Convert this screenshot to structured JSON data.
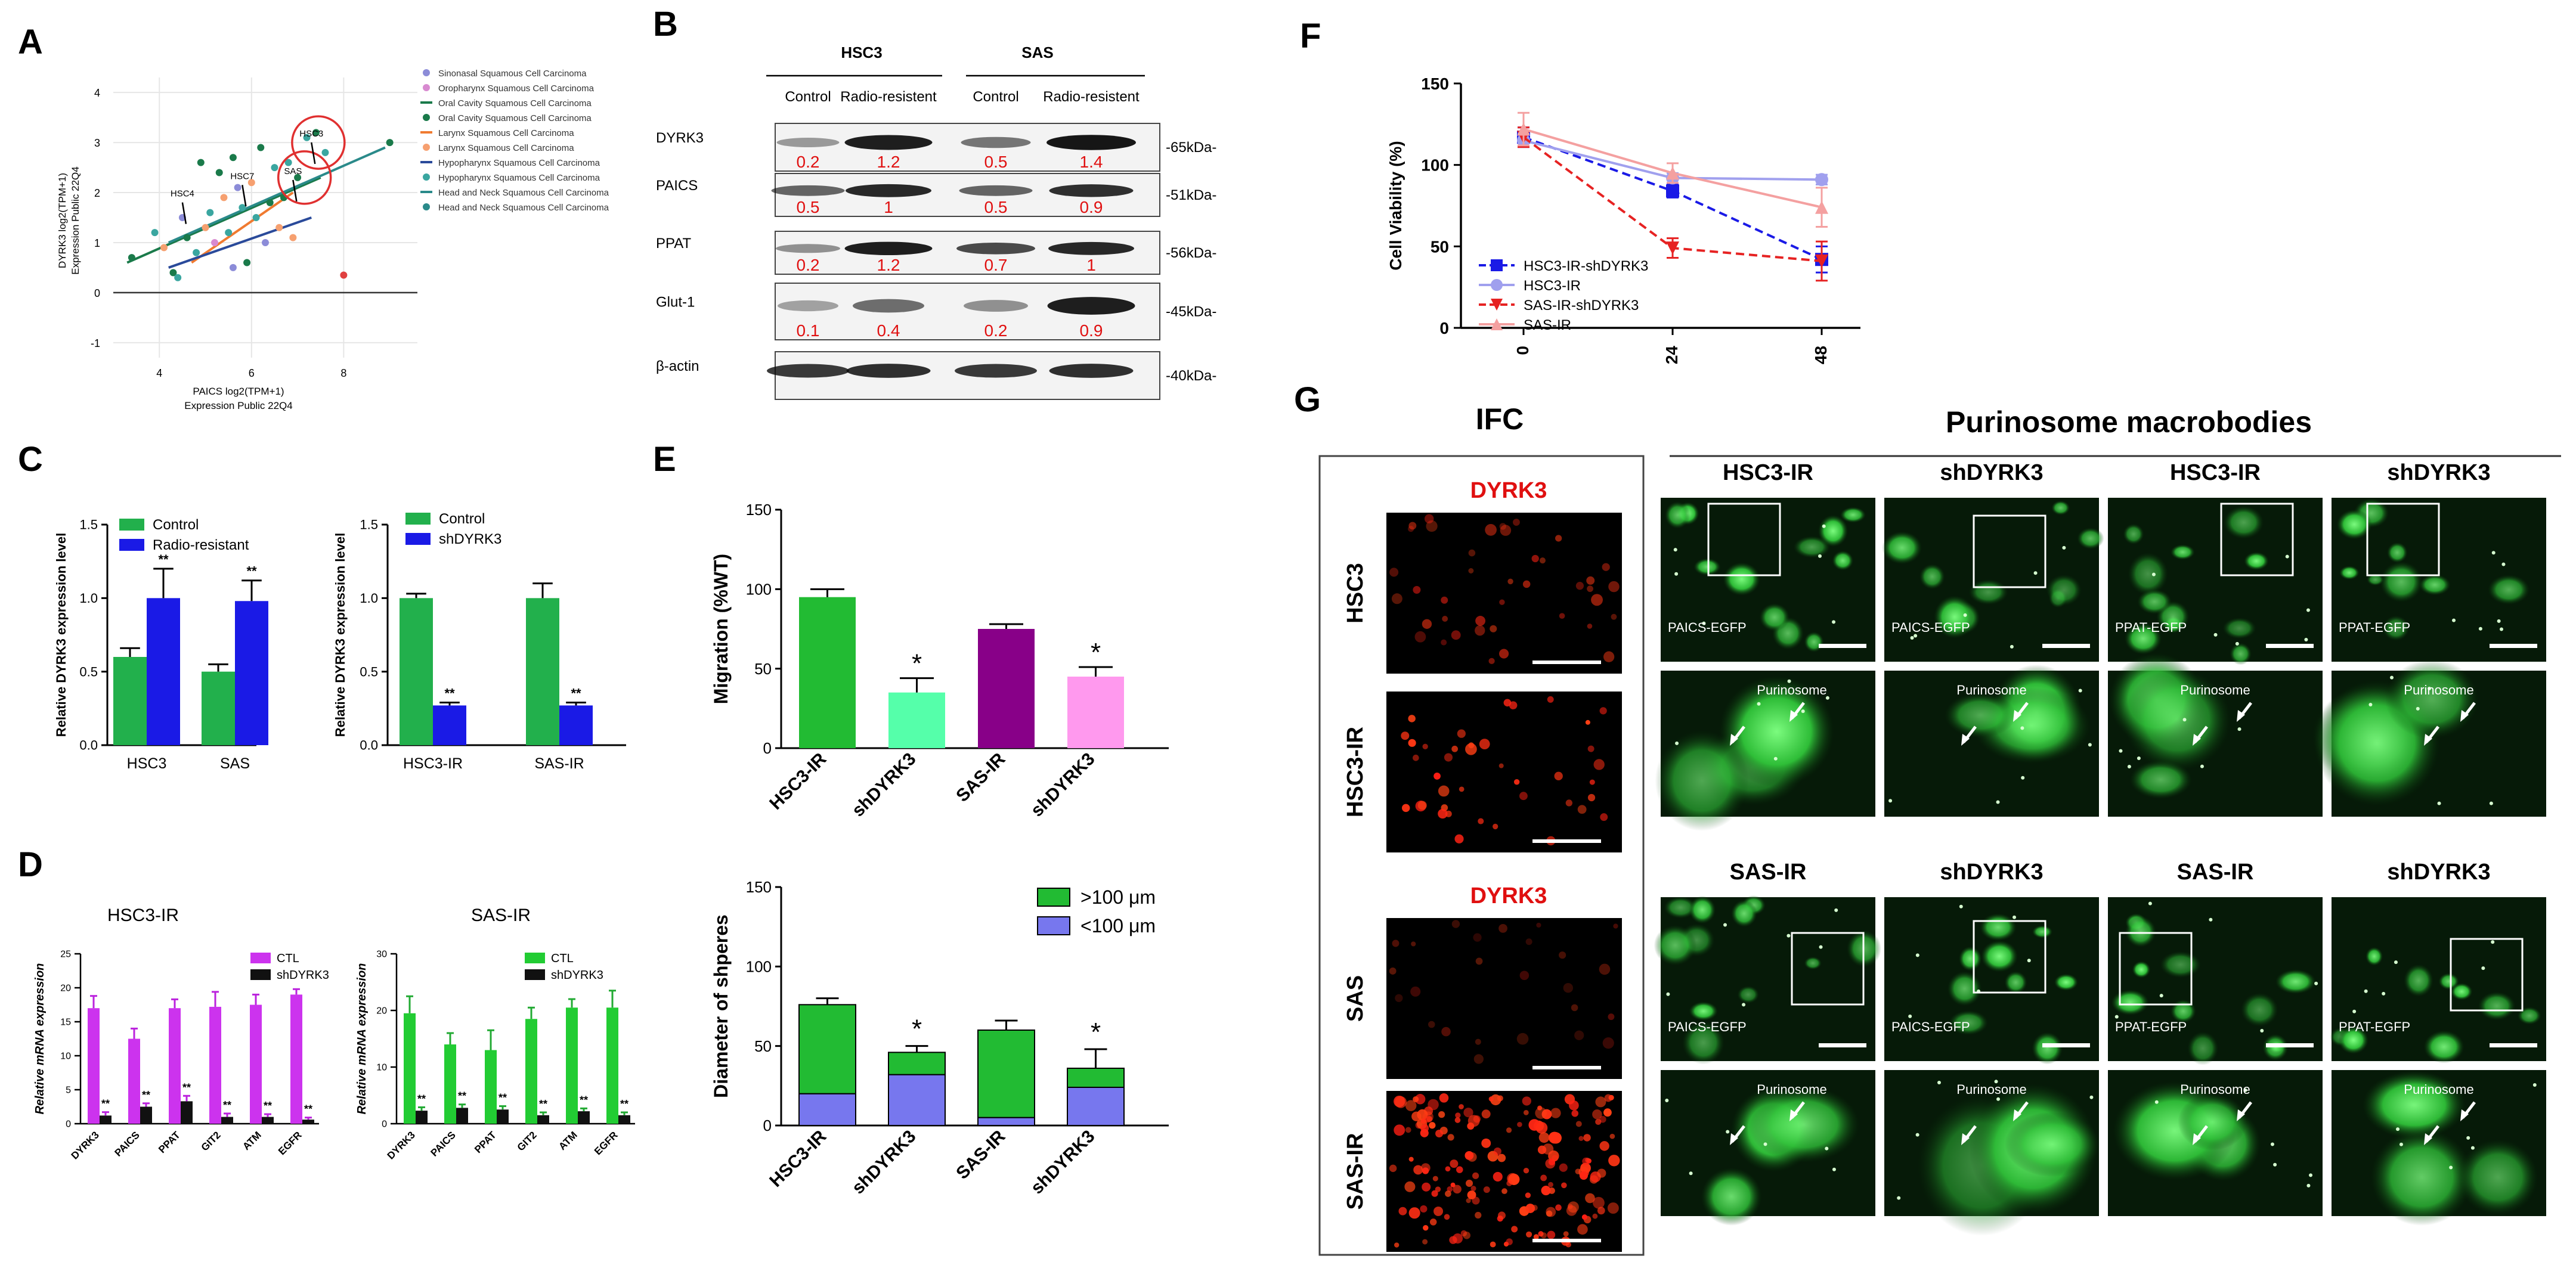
{
  "panel_letters": {
    "A": "A",
    "B": "B",
    "C": "C",
    "D": "D",
    "E": "E",
    "F": "F",
    "G": "G"
  },
  "chart_data": [
    {
      "panel": "A",
      "type": "scatter",
      "xlabel_lines": [
        "PAICS log2(TPM+1)",
        "Expression Public 22Q4"
      ],
      "ylabel_lines": [
        "DYRK3 log2(TPM+1)",
        "Expression Public 22Q4"
      ],
      "xticks": [
        "4",
        "6",
        "8"
      ],
      "yticks": [
        "4",
        "3",
        "2",
        "1",
        "0",
        "-1"
      ],
      "xlim": [
        3,
        9.6
      ],
      "ylim": [
        -1.3,
        4.3
      ],
      "legend": [
        "Sinonasal Squamous Cell Carcinoma",
        "Oropharynx Squamous Cell Carcinoma",
        "Oral Cavity Squamous Cell Carcinoma",
        "Oral Cavity Squamous Cell Carcinoma",
        "Larynx Squamous Cell Carcinoma",
        "Larynx Squamous Cell Carcinoma",
        "Hypopharynx Squamous Cell Carcinoma",
        "Hypopharynx Squamous Cell Carcinoma",
        "Head and Neck Squamous Cell Carcinoma",
        "Head and Neck Squamous Cell Carcinoma"
      ],
      "legend_colors": [
        "#8c8cd8",
        "#d88ad0",
        "#1a7a4a",
        "#1a7a4a",
        "#f07a30",
        "#f6a070",
        "#2a4a9a",
        "#3aa6a0",
        "#2a8a8a",
        "#2a8a8a"
      ],
      "legend_kinds": [
        "dot",
        "dot",
        "line",
        "dot",
        "line",
        "dot",
        "line",
        "dot",
        "line",
        "dot"
      ],
      "labels": [
        {
          "text": "HSC3",
          "x": 7.3,
          "y": 3.05
        },
        {
          "text": "SAS",
          "x": 6.9,
          "y": 2.3
        },
        {
          "text": "HSC4",
          "x": 4.5,
          "y": 1.85
        },
        {
          "text": "HSC7",
          "x": 5.8,
          "y": 2.2
        }
      ],
      "circles": [
        {
          "x": 7.45,
          "y": 3.0
        },
        {
          "x": 7.15,
          "y": 2.3
        }
      ],
      "fit_lines": [
        {
          "color": "#1a7a4a",
          "x": [
            3.3,
            7.5
          ],
          "y": [
            0.6,
            2.3
          ]
        },
        {
          "color": "#2a8a8a",
          "x": [
            4.2,
            8.9
          ],
          "y": [
            1.0,
            2.9
          ]
        },
        {
          "color": "#f07a30",
          "x": [
            4.7,
            6.9
          ],
          "y": [
            0.6,
            2.0
          ]
        },
        {
          "color": "#2a4a9a",
          "x": [
            4.2,
            7.3
          ],
          "y": [
            0.5,
            1.5
          ]
        }
      ],
      "points": {
        "x": [
          3.4,
          3.9,
          4.1,
          4.3,
          4.5,
          4.6,
          4.8,
          4.9,
          5.0,
          5.1,
          5.2,
          5.3,
          5.4,
          5.5,
          5.6,
          5.7,
          5.8,
          5.9,
          6.0,
          6.1,
          6.2,
          6.3,
          6.4,
          6.5,
          6.6,
          6.7,
          6.8,
          7.0,
          7.2,
          7.4,
          7.6,
          8.0,
          9.0,
          4.4,
          5.6,
          6.9
        ],
        "y": [
          0.7,
          1.2,
          0.9,
          0.4,
          1.5,
          1.1,
          0.8,
          2.6,
          1.3,
          1.6,
          1.0,
          2.4,
          1.9,
          1.2,
          2.7,
          2.1,
          1.7,
          0.6,
          2.2,
          1.5,
          2.9,
          1.0,
          1.8,
          2.5,
          1.3,
          1.9,
          2.6,
          2.3,
          3.1,
          3.2,
          2.8,
          0.35,
          3.0,
          0.3,
          0.5,
          1.1
        ],
        "colors": [
          "#1a7a4a",
          "#3aa6a0",
          "#f6a070",
          "#1a7a4a",
          "#8c8cd8",
          "#1a7a4a",
          "#3aa6a0",
          "#1a7a4a",
          "#f6a070",
          "#3aa6a0",
          "#d88ad0",
          "#1a7a4a",
          "#f6a070",
          "#3aa6a0",
          "#1a7a4a",
          "#8c8cd8",
          "#3aa6a0",
          "#1a7a4a",
          "#f6a070",
          "#3aa6a0",
          "#1a7a4a",
          "#8c8cd8",
          "#1a7a4a",
          "#3aa6a0",
          "#f6a070",
          "#1a7a4a",
          "#3aa6a0",
          "#1a7a4a",
          "#3aa6a0",
          "#1a7a4a",
          "#3aa6a0",
          "#e04040",
          "#1a7a4a",
          "#3aa6a0",
          "#8c8cd8",
          "#f6a070"
        ]
      }
    },
    {
      "panel": "C1",
      "type": "bar",
      "categories": [
        "HSC3",
        "SAS"
      ],
      "series": [
        {
          "name": "Control",
          "values": [
            0.6,
            0.5
          ],
          "err": [
            0.06,
            0.05
          ],
          "color": "#22b04c"
        },
        {
          "name": "Radio-resistant",
          "values": [
            1.0,
            0.98
          ],
          "err": [
            0.2,
            0.14
          ],
          "color": "#1a1ae6"
        }
      ],
      "ylabel": "Relative DYRK3 expression level",
      "ylim": [
        0,
        1.5
      ],
      "yticks": [
        "0.0",
        "0.5",
        "1.0",
        "1.5"
      ],
      "sig": [
        "**",
        "**"
      ]
    },
    {
      "panel": "C2",
      "type": "bar",
      "categories": [
        "HSC3-IR",
        "SAS-IR"
      ],
      "series": [
        {
          "name": "Control",
          "values": [
            1.0,
            1.0
          ],
          "err": [
            0.03,
            0.1
          ],
          "color": "#22b04c"
        },
        {
          "name": "shDYRK3",
          "values": [
            0.27,
            0.27
          ],
          "err": [
            0.02,
            0.02
          ],
          "color": "#1a1ae6"
        }
      ],
      "ylabel": "Relative DYRK3 expression level",
      "ylim": [
        0,
        1.5
      ],
      "yticks": [
        "0.0",
        "0.5",
        "1.0",
        "1.5"
      ],
      "sig": [
        "**",
        "**"
      ]
    },
    {
      "panel": "D1",
      "type": "bar",
      "title": "HSC3-IR",
      "categories": [
        "DYRK3",
        "PAICS",
        "PPAT",
        "GIT2",
        "ATM",
        "EGFR"
      ],
      "series": [
        {
          "name": "CTL",
          "values": [
            17,
            12.5,
            17,
            17.2,
            17.5,
            19
          ],
          "err": [
            1.8,
            1.5,
            1.3,
            2.2,
            1.5,
            0.8
          ],
          "color": "#cc33ee"
        },
        {
          "name": "shDYRK3",
          "values": [
            1.2,
            2.5,
            3.3,
            1.0,
            1.0,
            0.6
          ],
          "err": [
            0.5,
            0.5,
            0.8,
            0.5,
            0.4,
            0.3
          ],
          "color": "#111111"
        }
      ],
      "ylabel": "Relative mRNA expression",
      "ylim": [
        0,
        25
      ],
      "yticks": [
        "0",
        "5",
        "10",
        "15",
        "20",
        "25"
      ],
      "sig": [
        "**",
        "**",
        "**",
        "**",
        "**",
        "**"
      ]
    },
    {
      "panel": "D2",
      "type": "bar",
      "title": "SAS-IR",
      "categories": [
        "DYRK3",
        "PAICS",
        "PPAT",
        "GIT2",
        "ATM",
        "EGFR"
      ],
      "series": [
        {
          "name": "CTL",
          "values": [
            19.5,
            14,
            13,
            18.5,
            20.5,
            20.5
          ],
          "err": [
            3,
            2,
            3.5,
            2,
            1.5,
            3
          ],
          "color": "#22cc33"
        },
        {
          "name": "shDYRK3",
          "values": [
            2.3,
            2.8,
            2.5,
            1.5,
            2.2,
            1.5
          ],
          "err": [
            0.6,
            0.6,
            0.6,
            0.5,
            0.5,
            0.5
          ],
          "color": "#111111"
        }
      ],
      "ylabel": "Relative mRNA expression",
      "ylim": [
        0,
        30
      ],
      "yticks": [
        "0",
        "10",
        "20",
        "30"
      ],
      "sig": [
        "**",
        "**",
        "**",
        "**",
        "**",
        "**"
      ]
    },
    {
      "panel": "E1",
      "type": "bar",
      "categories": [
        "HSC3-IR",
        "shDYRK3",
        "SAS-IR",
        "shDYRK3"
      ],
      "values": [
        95,
        35,
        75,
        45
      ],
      "err": [
        5,
        9,
        3,
        6
      ],
      "colors": [
        "#22bb33",
        "#55ffaa",
        "#880088",
        "#ff99ee"
      ],
      "ylabel": "Migration (%WT)",
      "ylim": [
        0,
        150
      ],
      "yticks": [
        "0",
        "50",
        "100",
        "150"
      ],
      "sig": [
        "",
        "*",
        "",
        "*"
      ]
    },
    {
      "panel": "E2",
      "type": "bar",
      "stacked": true,
      "categories": [
        "HSC3-IR",
        "shDYRK3",
        "SAS-IR",
        "shDYRK3"
      ],
      "series": [
        {
          "name": "<100 μm",
          "values": [
            20,
            32,
            5,
            24
          ],
          "err": [
            5,
            5,
            4,
            5
          ],
          "color": "#7777ee"
        },
        {
          "name": ">100 μm",
          "values": [
            56,
            14,
            55,
            12
          ],
          "err": [
            4,
            4,
            6,
            12
          ],
          "color": "#22bb33"
        }
      ],
      "ylabel": "Diameter of shperes",
      "ylim": [
        0,
        150
      ],
      "yticks": [
        "0",
        "50",
        "100",
        "150"
      ],
      "sig": [
        "",
        "*",
        "",
        "*"
      ],
      "legend_order": [
        ">100 μm",
        "<100 μm"
      ]
    },
    {
      "panel": "F",
      "type": "line",
      "x": [
        0,
        24,
        48
      ],
      "xticks": [
        "0",
        "24",
        "48"
      ],
      "series": [
        {
          "name": "HSC3-IR-shDYRK3",
          "values": [
            117,
            84,
            42
          ],
          "err": [
            6,
            4,
            8
          ],
          "color": "#1a1ae6",
          "dashed": true,
          "marker": "square"
        },
        {
          "name": "HSC3-IR",
          "values": [
            115,
            92,
            91
          ],
          "err": [
            4,
            3,
            3
          ],
          "color": "#a0a0ee",
          "dashed": false,
          "marker": "circle"
        },
        {
          "name": "SAS-IR-shDYRK3",
          "values": [
            117,
            49,
            41
          ],
          "err": [
            6,
            6,
            12
          ],
          "color": "#e62222",
          "dashed": true,
          "marker": "triangle-down"
        },
        {
          "name": "SAS-IR",
          "values": [
            122,
            95,
            74
          ],
          "err": [
            10,
            6,
            12
          ],
          "color": "#f4a0a0",
          "dashed": false,
          "marker": "triangle-up"
        }
      ],
      "ylabel": "Cell Viability (%)",
      "ylim": [
        0,
        150
      ],
      "yticks": [
        "0",
        "50",
        "100",
        "150"
      ]
    }
  ],
  "blot": {
    "groups": [
      "HSC3",
      "SAS"
    ],
    "columns": [
      "Control",
      "Radio-resistent",
      "Control",
      "Radio-resistent"
    ],
    "rows": [
      {
        "name": "DYRK3",
        "kda": "-65kDa-",
        "values": [
          "0.2",
          "1.2",
          "0.5",
          "1.4"
        ],
        "intensity": [
          0.25,
          0.95,
          0.45,
          1.0
        ]
      },
      {
        "name": "PAICS",
        "kda": "-51kDa-",
        "values": [
          "0.5",
          "1",
          "0.5",
          "0.9"
        ],
        "intensity": [
          0.55,
          0.9,
          0.55,
          0.85
        ]
      },
      {
        "name": "PPAT",
        "kda": "-56kDa-",
        "values": [
          "0.2",
          "1.2",
          "0.7",
          "1"
        ],
        "intensity": [
          0.3,
          0.95,
          0.7,
          0.9
        ]
      },
      {
        "name": "Glut-1",
        "kda": "-45kDa-",
        "values": [
          "0.1",
          "0.4",
          "0.2",
          "0.9"
        ],
        "intensity": [
          0.2,
          0.5,
          0.3,
          0.95
        ]
      },
      {
        "name": "β-actin",
        "kda": "-40kDa-",
        "values": [],
        "intensity": [
          0.8,
          0.85,
          0.8,
          0.85
        ]
      }
    ]
  },
  "panelG": {
    "ifc_title": "IFC",
    "macro_title": "Purinosome macrobodies",
    "ifc_labels": [
      "DYRK3",
      "DYRK3"
    ],
    "row_labels": [
      "HSC3",
      "HSC3-IR",
      "SAS",
      "SAS-IR"
    ],
    "top_headers": [
      "HSC3-IR",
      "shDYRK3",
      "HSC3-IR",
      "shDYRK3"
    ],
    "bottom_headers": [
      "SAS-IR",
      "shDYRK3",
      "SAS-IR",
      "shDYRK3"
    ],
    "top_labels": [
      "PAICS-EGFP",
      "PAICS-EGFP",
      "PPAT-EGFP",
      "PPAT-EGFP"
    ],
    "bottom_labels": [
      "PAICS-EGFP",
      "PAICS-EGFP",
      "PPAT-EGFP",
      "PPAT-EGFP"
    ],
    "purinosome": "Purinosome"
  }
}
